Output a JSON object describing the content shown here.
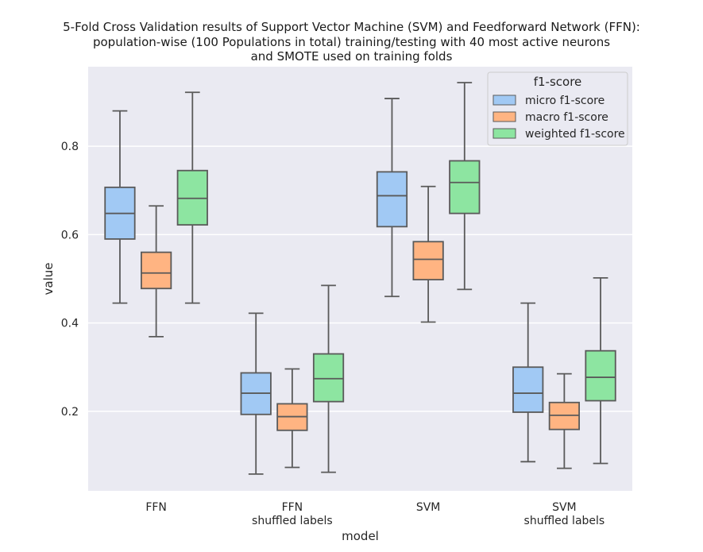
{
  "chart_data": {
    "type": "box",
    "title_lines": [
      "5-Fold Cross Validation results of Support Vector Machine (SVM) and Feedforward Network (FFN):",
      "population-wise (100 Populations in total) training/testing with 40 most active neurons",
      "and SMOTE used on training folds"
    ],
    "xlabel": "model",
    "ylabel": "value",
    "ylim": [
      0.02,
      0.98
    ],
    "yticks": [
      "0.2",
      "0.4",
      "0.6",
      "0.8"
    ],
    "categories": [
      [
        "FFN"
      ],
      [
        "FFN",
        "shuffled labels"
      ],
      [
        "SVM"
      ],
      [
        "SVM",
        "shuffled labels"
      ]
    ],
    "legend": {
      "title": "f1-score",
      "placement": "top-right"
    },
    "series": [
      {
        "name": "micro f1-score",
        "color": "#a1c9f4",
        "boxes": [
          {
            "whislo": 0.445,
            "q1": 0.59,
            "med": 0.648,
            "q3": 0.707,
            "whishi": 0.88
          },
          {
            "whislo": 0.058,
            "q1": 0.193,
            "med": 0.241,
            "q3": 0.287,
            "whishi": 0.422
          },
          {
            "whislo": 0.46,
            "q1": 0.618,
            "med": 0.688,
            "q3": 0.742,
            "whishi": 0.908
          },
          {
            "whislo": 0.086,
            "q1": 0.198,
            "med": 0.241,
            "q3": 0.3,
            "whishi": 0.445
          }
        ]
      },
      {
        "name": "macro f1-score",
        "color": "#ffb482",
        "boxes": [
          {
            "whislo": 0.369,
            "q1": 0.478,
            "med": 0.513,
            "q3": 0.56,
            "whishi": 0.665
          },
          {
            "whislo": 0.073,
            "q1": 0.157,
            "med": 0.188,
            "q3": 0.217,
            "whishi": 0.296
          },
          {
            "whislo": 0.402,
            "q1": 0.498,
            "med": 0.544,
            "q3": 0.584,
            "whishi": 0.709
          },
          {
            "whislo": 0.071,
            "q1": 0.159,
            "med": 0.191,
            "q3": 0.22,
            "whishi": 0.285
          }
        ]
      },
      {
        "name": "weighted f1-score",
        "color": "#8de5a1",
        "boxes": [
          {
            "whislo": 0.445,
            "q1": 0.622,
            "med": 0.682,
            "q3": 0.745,
            "whishi": 0.922
          },
          {
            "whislo": 0.062,
            "q1": 0.222,
            "med": 0.274,
            "q3": 0.33,
            "whishi": 0.485
          },
          {
            "whislo": 0.476,
            "q1": 0.648,
            "med": 0.718,
            "q3": 0.767,
            "whishi": 0.944
          },
          {
            "whislo": 0.082,
            "q1": 0.224,
            "med": 0.277,
            "q3": 0.337,
            "whishi": 0.502
          }
        ]
      }
    ],
    "colors": {
      "plot_background": "#eaeaf2",
      "grid": "#ffffff",
      "box_edge": "#5a5a5a"
    }
  }
}
